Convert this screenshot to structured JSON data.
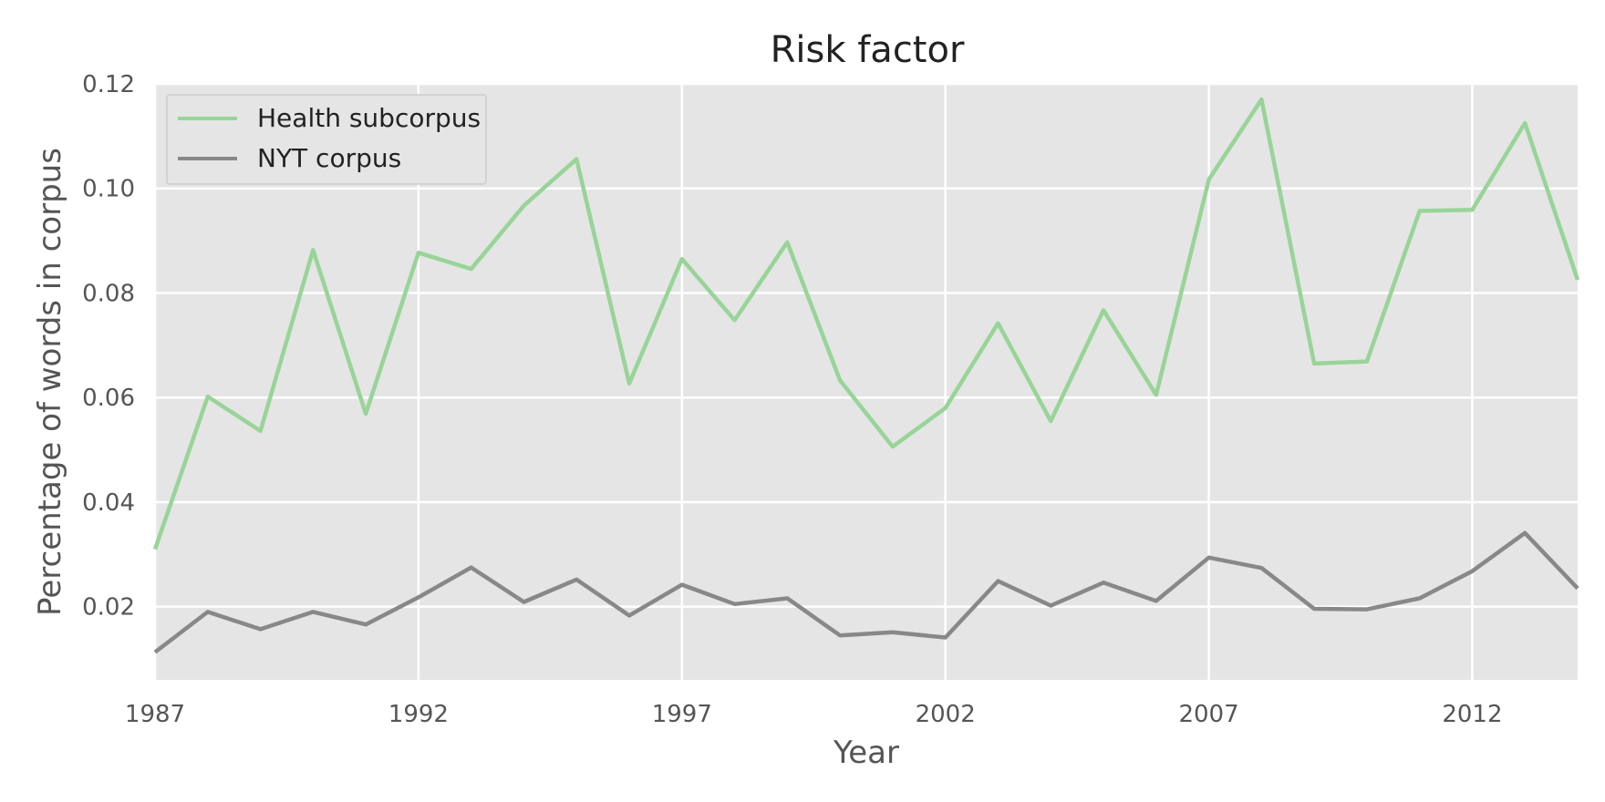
{
  "chart_data": {
    "type": "line",
    "title": "Risk factor",
    "xlabel": "Year",
    "ylabel": "Percentage of words in corpus",
    "x": [
      1987,
      1988,
      1989,
      1990,
      1991,
      1992,
      1993,
      1994,
      1995,
      1996,
      1997,
      1998,
      1999,
      2000,
      2001,
      2002,
      2003,
      2004,
      2005,
      2006,
      2007,
      2008,
      2009,
      2010,
      2011,
      2012,
      2013,
      2014
    ],
    "xticks": [
      "1987",
      "1992",
      "1997",
      "2002",
      "2007",
      "2012"
    ],
    "yticks": [
      "0.02",
      "0.04",
      "0.06",
      "0.08",
      "0.10",
      "0.12"
    ],
    "xlim": [
      1987,
      2014
    ],
    "ylim": [
      0.006,
      0.12
    ],
    "grid": true,
    "legend_position": "top-left",
    "series": [
      {
        "name": "Health subcorpus",
        "color": "#98d498",
        "values": [
          0.031,
          0.0602,
          0.0536,
          0.0882,
          0.0569,
          0.0877,
          0.0846,
          0.0967,
          0.1056,
          0.0627,
          0.0865,
          0.0748,
          0.0897,
          0.0633,
          0.0506,
          0.058,
          0.0742,
          0.0555,
          0.0767,
          0.0605,
          0.1017,
          0.117,
          0.0665,
          0.0669,
          0.0957,
          0.0959,
          0.1125,
          0.0825
        ]
      },
      {
        "name": "NYT corpus",
        "color": "#888888",
        "values": [
          0.0113,
          0.019,
          0.0157,
          0.019,
          0.0166,
          0.0218,
          0.0275,
          0.0209,
          0.0252,
          0.0183,
          0.0242,
          0.0205,
          0.0216,
          0.0145,
          0.0151,
          0.0141,
          0.0249,
          0.0202,
          0.0246,
          0.0211,
          0.0294,
          0.0274,
          0.0196,
          0.0195,
          0.0216,
          0.0268,
          0.0341,
          0.0235
        ]
      }
    ]
  }
}
